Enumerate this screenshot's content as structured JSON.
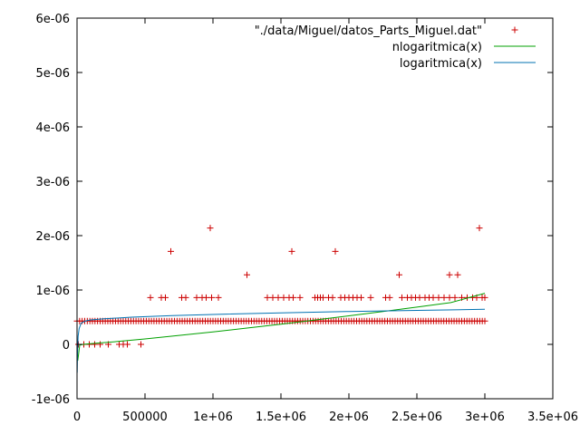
{
  "chart_data": {
    "type": "scatter",
    "title": "",
    "xlabel": "",
    "ylabel": "",
    "xlim": [
      0,
      3500000
    ],
    "ylim": [
      -1e-06,
      6e-06
    ],
    "grid": false,
    "legend_placement": "top-right",
    "x_ticks": [
      {
        "value": 0,
        "label": "0"
      },
      {
        "value": 500000,
        "label": "500000"
      },
      {
        "value": 1000000,
        "label": "1e+06"
      },
      {
        "value": 1500000,
        "label": "1.5e+06"
      },
      {
        "value": 2000000,
        "label": "2e+06"
      },
      {
        "value": 2500000,
        "label": "2.5e+06"
      },
      {
        "value": 3000000,
        "label": "3e+06"
      },
      {
        "value": 3500000,
        "label": "3.5e+06"
      }
    ],
    "y_ticks": [
      {
        "value": -1e-06,
        "label": "-1e-06"
      },
      {
        "value": 0,
        "label": "0"
      },
      {
        "value": 1e-06,
        "label": "1e-06"
      },
      {
        "value": 2e-06,
        "label": "2e-06"
      },
      {
        "value": 3e-06,
        "label": "3e-06"
      },
      {
        "value": 4e-06,
        "label": "4e-06"
      },
      {
        "value": 5e-06,
        "label": "5e-06"
      },
      {
        "value": 6e-06,
        "label": "6e-06"
      }
    ],
    "series": [
      {
        "name": "\"./data/Miguel/datos_Parts_Miguel.dat\"",
        "kind": "points",
        "color": "#cc0000",
        "groups": [
          {
            "y": 4.3e-07,
            "x_start": 0,
            "x_end": 3000000,
            "count": 160
          },
          {
            "y": 0,
            "x": [
              10000,
              50000,
              90000,
              130000,
              170000,
              230000,
              310000,
              340000,
              370000,
              470000
            ]
          },
          {
            "y": 8.6e-07,
            "x": [
              540000,
              620000,
              650000,
              770000,
              800000,
              880000,
              920000,
              950000,
              990000,
              1040000,
              1400000,
              1440000,
              1480000,
              1520000,
              1560000,
              1590000,
              1640000,
              1750000,
              1770000,
              1790000,
              1810000,
              1850000,
              1880000,
              1940000,
              1970000,
              2000000,
              2030000,
              2060000,
              2090000,
              2160000,
              2270000,
              2300000,
              2390000,
              2430000,
              2460000,
              2490000,
              2520000,
              2560000,
              2590000,
              2620000,
              2660000,
              2700000,
              2740000,
              2780000,
              2830000,
              2870000,
              2910000,
              2940000,
              2980000,
              3000000
            ]
          },
          {
            "y": 1.28e-06,
            "x": [
              1250000,
              2370000,
              2740000,
              2800000
            ]
          },
          {
            "y": 1.71e-06,
            "x": [
              690000,
              1580000,
              1900000
            ]
          },
          {
            "y": 2.14e-06,
            "x": [
              980000,
              2960000
            ]
          }
        ]
      },
      {
        "name": "nlogaritmica(x)",
        "kind": "line",
        "color": "#00a000",
        "x": [
          5000,
          20000,
          60000,
          150000,
          300000,
          500000,
          750000,
          1000000,
          1250000,
          1500000,
          1750000,
          2000000,
          2250000,
          2500000,
          2750000,
          3000000
        ],
        "y": [
          -3e-07,
          -1e-08,
          5e-09,
          2.3e-08,
          5.3e-08,
          1e-07,
          1.65e-07,
          2.3e-07,
          3e-07,
          3.72e-07,
          4.48e-07,
          5.25e-07,
          6.04e-07,
          6.85e-07,
          7.68e-07,
          9.4e-07
        ]
      },
      {
        "name": "logaritmica(x)",
        "kind": "line",
        "color": "#0072b2",
        "x": [
          1000,
          3000,
          8000,
          15000,
          30000,
          60000,
          100000,
          200000,
          400000,
          700000,
          1000000,
          1500000,
          2000000,
          2500000,
          3000000
        ],
        "y": [
          -5.2e-07,
          -2e-07,
          1.5e-07,
          2.9e-07,
          3.9e-07,
          4.3e-07,
          4.5e-07,
          4.7e-07,
          5e-07,
          5.3e-07,
          5.5e-07,
          5.8e-07,
          6.05e-07,
          6.25e-07,
          6.45e-07
        ]
      }
    ]
  }
}
